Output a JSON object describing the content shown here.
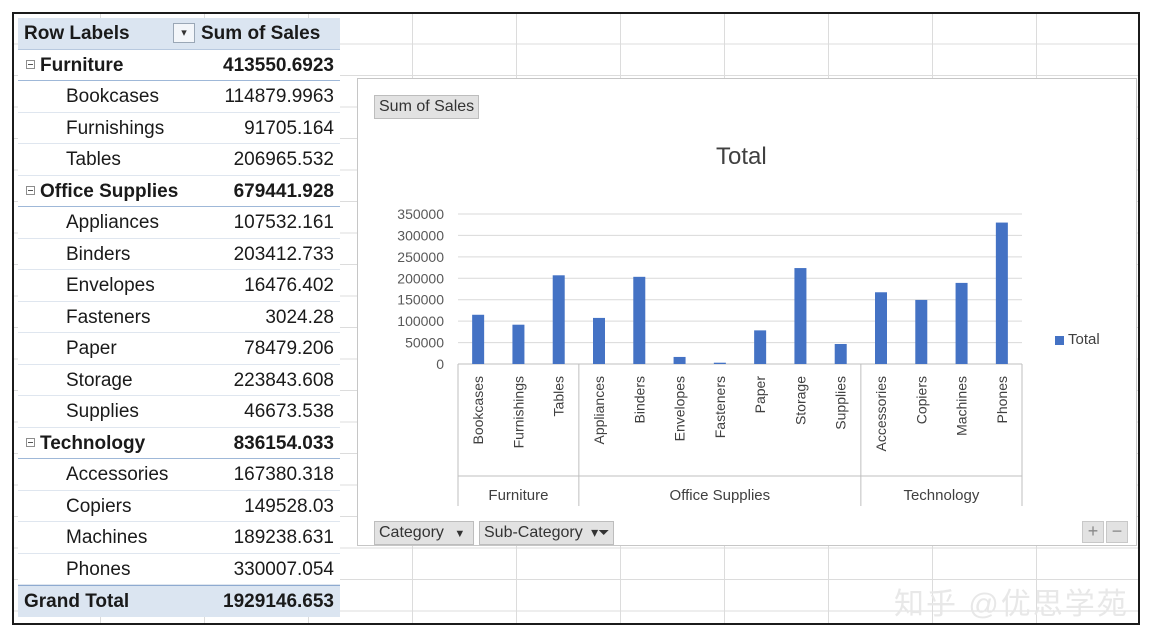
{
  "pivot": {
    "header_label": "Row Labels",
    "header_value": "Sum of Sales",
    "rows": [
      {
        "type": "cat",
        "label": "Furniture",
        "value": "413550.6923"
      },
      {
        "type": "sub",
        "label": "Bookcases",
        "value": "114879.9963"
      },
      {
        "type": "sub",
        "label": "Furnishings",
        "value": "91705.164"
      },
      {
        "type": "sub",
        "label": "Tables",
        "value": "206965.532"
      },
      {
        "type": "cat",
        "label": "Office Supplies",
        "value": "679441.928"
      },
      {
        "type": "sub",
        "label": "Appliances",
        "value": "107532.161"
      },
      {
        "type": "sub",
        "label": "Binders",
        "value": "203412.733"
      },
      {
        "type": "sub",
        "label": "Envelopes",
        "value": "16476.402"
      },
      {
        "type": "sub",
        "label": "Fasteners",
        "value": "3024.28"
      },
      {
        "type": "sub",
        "label": "Paper",
        "value": "78479.206"
      },
      {
        "type": "sub",
        "label": "Storage",
        "value": "223843.608"
      },
      {
        "type": "sub",
        "label": "Supplies",
        "value": "46673.538"
      },
      {
        "type": "cat",
        "label": "Technology",
        "value": "836154.033"
      },
      {
        "type": "sub",
        "label": "Accessories",
        "value": "167380.318"
      },
      {
        "type": "sub",
        "label": "Copiers",
        "value": "149528.03"
      },
      {
        "type": "sub",
        "label": "Machines",
        "value": "189238.631"
      },
      {
        "type": "sub",
        "label": "Phones",
        "value": "330007.054"
      }
    ],
    "grand_total_label": "Grand Total",
    "grand_total_value": "1929146.653"
  },
  "chart_ui": {
    "value_field_button": "Sum of Sales",
    "axis_field_category": "Category",
    "axis_field_subcategory": "Sub-Category",
    "zoom_in": "+",
    "zoom_out": "−"
  },
  "chart_data": {
    "type": "bar",
    "title": "Total",
    "groups": [
      {
        "name": "Furniture",
        "categories": [
          "Bookcases",
          "Furnishings",
          "Tables"
        ]
      },
      {
        "name": "Office Supplies",
        "categories": [
          "Appliances",
          "Binders",
          "Envelopes",
          "Fasteners",
          "Paper",
          "Storage",
          "Supplies"
        ]
      },
      {
        "name": "Technology",
        "categories": [
          "Accessories",
          "Copiers",
          "Machines",
          "Phones"
        ]
      }
    ],
    "categories": [
      "Bookcases",
      "Furnishings",
      "Tables",
      "Appliances",
      "Binders",
      "Envelopes",
      "Fasteners",
      "Paper",
      "Storage",
      "Supplies",
      "Accessories",
      "Copiers",
      "Machines",
      "Phones"
    ],
    "series": [
      {
        "name": "Total",
        "values": [
          114879.9963,
          91705.164,
          206965.532,
          107532.161,
          203412.733,
          16476.402,
          3024.28,
          78479.206,
          223843.608,
          46673.538,
          167380.318,
          149528.03,
          189238.631,
          330007.054
        ]
      }
    ],
    "ylim": [
      0,
      350000
    ],
    "yticks": [
      0,
      50000,
      100000,
      150000,
      200000,
      250000,
      300000,
      350000
    ],
    "legend_position": "right",
    "bar_color": "#4472c4",
    "grid": true
  },
  "watermark": "知乎 @优思学苑"
}
